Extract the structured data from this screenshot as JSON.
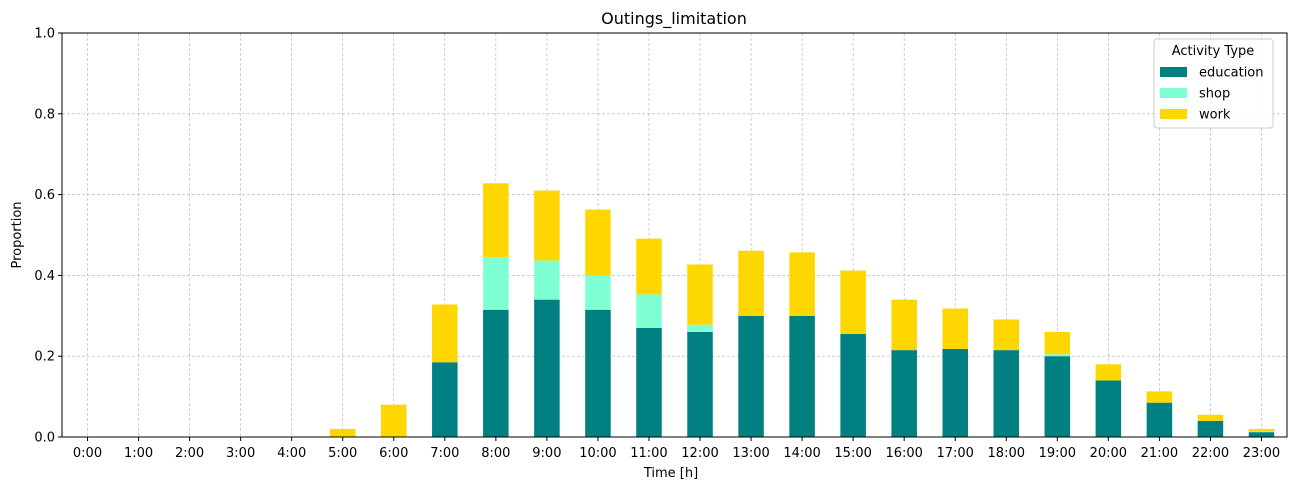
{
  "chart_data": {
    "type": "bar",
    "stacked": true,
    "title": "Outings_limitation",
    "xlabel": "Time [h]",
    "ylabel": "Proportion",
    "ylim": [
      0,
      1
    ],
    "yticks": [
      "0.0",
      "0.2",
      "0.4",
      "0.6",
      "0.8",
      "1.0"
    ],
    "grid": true,
    "legend": {
      "title": "Activity Type",
      "placement": "top-right"
    },
    "categories": [
      "0:00",
      "1:00",
      "2:00",
      "3:00",
      "4:00",
      "5:00",
      "6:00",
      "7:00",
      "8:00",
      "9:00",
      "10:00",
      "11:00",
      "12:00",
      "13:00",
      "14:00",
      "15:00",
      "16:00",
      "17:00",
      "18:00",
      "19:00",
      "20:00",
      "21:00",
      "22:00",
      "23:00"
    ],
    "series": [
      {
        "name": "education",
        "color": "#008080",
        "values": [
          0,
          0,
          0,
          0,
          0,
          0,
          0,
          0.185,
          0.315,
          0.34,
          0.315,
          0.27,
          0.26,
          0.3,
          0.3,
          0.255,
          0.215,
          0.218,
          0.215,
          0.2,
          0.14,
          0.085,
          0.04,
          0.012
        ]
      },
      {
        "name": "shop",
        "color": "#7fffd4",
        "values": [
          0,
          0,
          0,
          0,
          0,
          0,
          0,
          0,
          0.13,
          0.097,
          0.085,
          0.083,
          0.018,
          0,
          0,
          0,
          0,
          0,
          0,
          0.005,
          0,
          0,
          0,
          0.003
        ]
      },
      {
        "name": "work",
        "color": "#ffd700",
        "values": [
          0,
          0,
          0,
          0,
          0,
          0.02,
          0.08,
          0.143,
          0.183,
          0.173,
          0.163,
          0.138,
          0.149,
          0.161,
          0.157,
          0.157,
          0.125,
          0.1,
          0.076,
          0.055,
          0.04,
          0.028,
          0.015,
          0.005
        ]
      }
    ]
  }
}
